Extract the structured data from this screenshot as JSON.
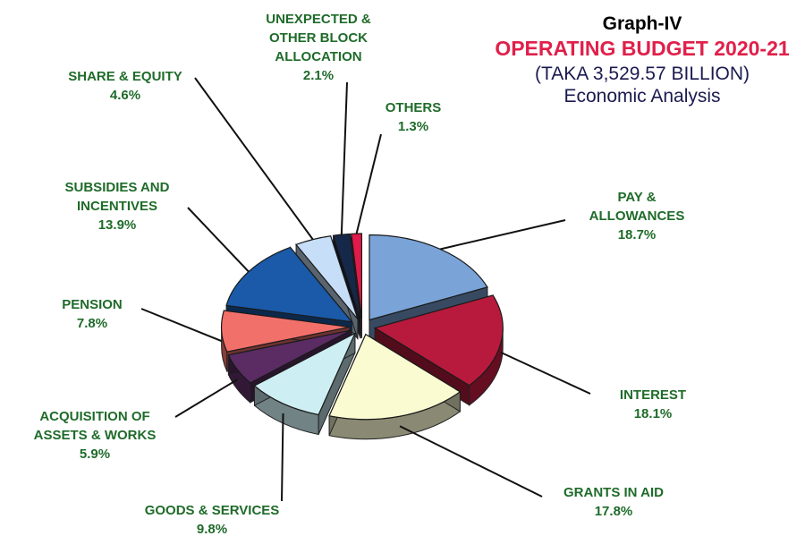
{
  "chart_data": {
    "type": "pie",
    "heading": "Graph-IV",
    "title": "OPERATING BUDGET 2020-21",
    "subtitle": "(TAKA 3,529.57 BILLION)",
    "caption": "Economic Analysis",
    "slices": [
      {
        "label_lines": [
          "PAY &",
          "ALLOWANCES"
        ],
        "value": 18.7,
        "value_label": "18.7%",
        "color": "#7aa4d8"
      },
      {
        "label_lines": [
          "INTEREST"
        ],
        "value": 18.1,
        "value_label": "18.1%",
        "color": "#b71a3c"
      },
      {
        "label_lines": [
          "GRANTS IN AID"
        ],
        "value": 17.8,
        "value_label": "17.8%",
        "color": "#fbfbd2"
      },
      {
        "label_lines": [
          "GOODS & SERVICES"
        ],
        "value": 9.8,
        "value_label": "9.8%",
        "color": "#cdeef2"
      },
      {
        "label_lines": [
          "ACQUISITION OF",
          "ASSETS & WORKS"
        ],
        "value": 5.9,
        "value_label": "5.9%",
        "color": "#5a2c63"
      },
      {
        "label_lines": [
          "PENSION"
        ],
        "value": 7.8,
        "value_label": "7.8%",
        "color": "#f2706a"
      },
      {
        "label_lines": [
          "SUBSIDIES AND",
          "INCENTIVES"
        ],
        "value": 13.9,
        "value_label": "13.9%",
        "color": "#1a5aa8"
      },
      {
        "label_lines": [
          "SHARE & EQUITY"
        ],
        "value": 4.6,
        "value_label": "4.6%",
        "color": "#c6def7"
      },
      {
        "label_lines": [
          "UNEXPECTED &",
          "OTHER BLOCK",
          "ALLOCATION"
        ],
        "value": 2.1,
        "value_label": "2.1%",
        "color": "#16284a"
      },
      {
        "label_lines": [
          "OTHERS"
        ],
        "value": 1.3,
        "value_label": "1.3%",
        "color": "#e01a4a"
      }
    ]
  }
}
